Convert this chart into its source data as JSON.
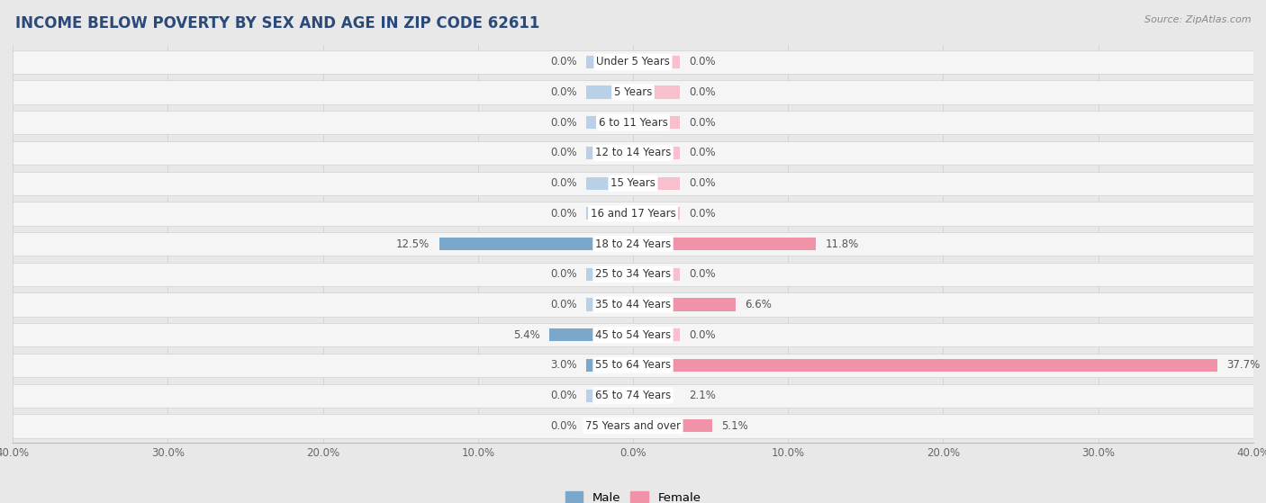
{
  "title": "INCOME BELOW POVERTY BY SEX AND AGE IN ZIP CODE 62611",
  "source": "Source: ZipAtlas.com",
  "categories": [
    "Under 5 Years",
    "5 Years",
    "6 to 11 Years",
    "12 to 14 Years",
    "15 Years",
    "16 and 17 Years",
    "18 to 24 Years",
    "25 to 34 Years",
    "35 to 44 Years",
    "45 to 54 Years",
    "55 to 64 Years",
    "65 to 74 Years",
    "75 Years and over"
  ],
  "male_values": [
    0.0,
    0.0,
    0.0,
    0.0,
    0.0,
    0.0,
    12.5,
    0.0,
    0.0,
    5.4,
    3.0,
    0.0,
    0.0
  ],
  "female_values": [
    0.0,
    0.0,
    0.0,
    0.0,
    0.0,
    0.0,
    11.8,
    0.0,
    6.6,
    0.0,
    37.7,
    2.1,
    5.1
  ],
  "male_color": "#7ba7cb",
  "female_color": "#f093a8",
  "male_min_color": "#b8d0e8",
  "female_min_color": "#f8c0cd",
  "axis_max": 40.0,
  "min_bar": 3.0,
  "background_color": "#e8e8e8",
  "row_bg_color": "#f5f5f5",
  "row_alt_color": "#ebebeb",
  "title_fontsize": 12,
  "label_fontsize": 8.5,
  "tick_fontsize": 8.5,
  "source_fontsize": 8
}
